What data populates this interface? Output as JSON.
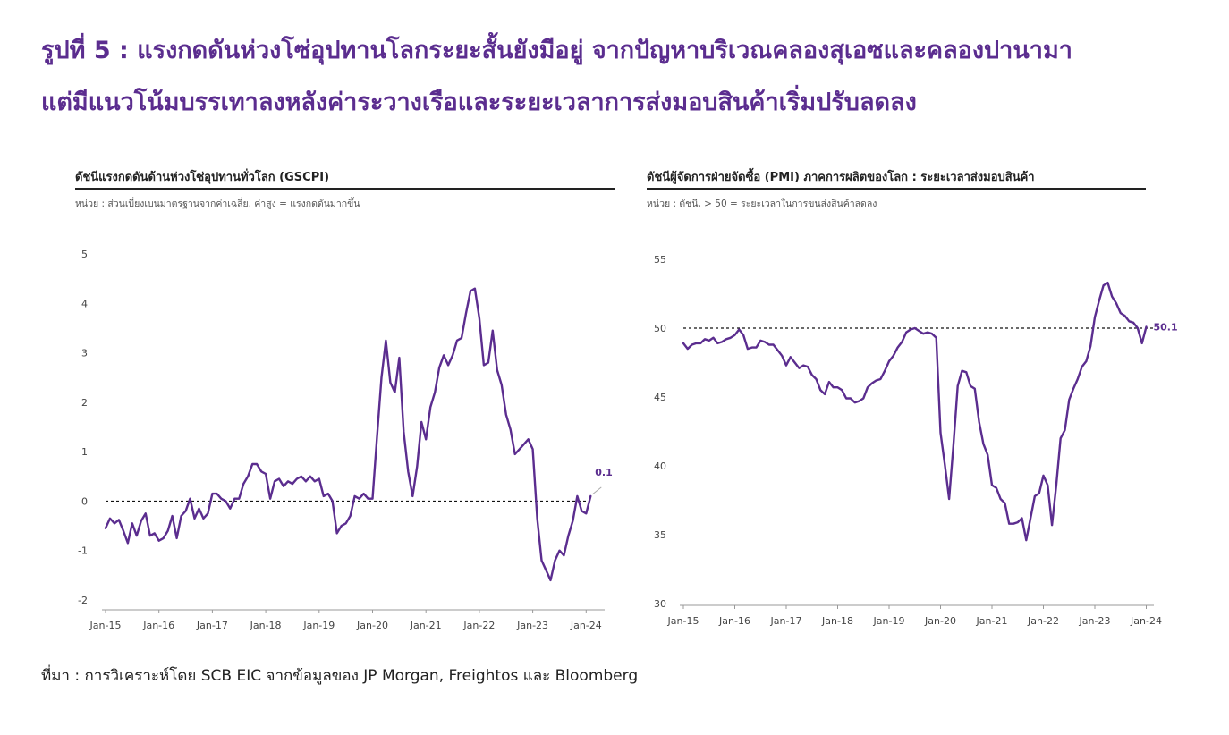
{
  "header": {
    "line1": "รูปที่ 5 : แรงกดดันห่วงโซ่อุปทานโลกระยะสั้นยังมีอยู่ จากปัญหาบริเวณคลองสุเอซและคลองปานามา",
    "line2": "แต่มีแนวโน้มบรรเทาลงหลังค่าระวางเรือและระยะเวลาการส่งมอบสินค้าเริ่มปรับลดลง"
  },
  "source": "ที่มา : การวิเคราะห์โดย SCB EIC จากข้อมูลของ JP Morgan, Freightos และ Bloomberg",
  "colors": {
    "title": "#5b2d8f",
    "series": "#5b2d8f",
    "text": "#222222",
    "axis": "#666666"
  },
  "chart_data": [
    {
      "type": "line",
      "title": "ดัชนีแรงกดดันด้านห่วงโซ่อุปทานทั่วโลก (GSCPI)",
      "unit_note": "หน่วย : ส่วนเบี่ยงเบนมาตรฐานจากค่าเฉลี่ย, ค่าสูง = แรงกดดันมากขึ้น",
      "xlabel": "",
      "ylabel": "",
      "x_ticks": [
        "Jan-15",
        "Jan-16",
        "Jan-17",
        "Jan-18",
        "Jan-19",
        "Jan-20",
        "Jan-21",
        "Jan-22",
        "Jan-23",
        "Jan-24"
      ],
      "y_ticks": [
        5,
        4,
        3,
        2,
        1,
        0,
        -1,
        -2
      ],
      "ylim": [
        -2,
        5
      ],
      "reference_line": 0,
      "end_label": "0.1",
      "grid": false,
      "series": [
        {
          "name": "GSCPI",
          "values": [
            -0.55,
            -0.35,
            -0.45,
            -0.38,
            -0.6,
            -0.85,
            -0.45,
            -0.7,
            -0.4,
            -0.25,
            -0.7,
            -0.65,
            -0.8,
            -0.75,
            -0.6,
            -0.3,
            -0.75,
            -0.3,
            -0.2,
            0.05,
            -0.35,
            -0.15,
            -0.35,
            -0.25,
            0.15,
            0.15,
            0.05,
            0.0,
            -0.15,
            0.05,
            0.05,
            0.35,
            0.5,
            0.75,
            0.75,
            0.6,
            0.55,
            0.05,
            0.4,
            0.45,
            0.3,
            0.4,
            0.35,
            0.45,
            0.5,
            0.4,
            0.5,
            0.4,
            0.45,
            0.1,
            0.15,
            0.0,
            -0.65,
            -0.5,
            -0.45,
            -0.3,
            0.1,
            0.05,
            0.15,
            0.05,
            0.05,
            1.3,
            2.5,
            3.25,
            2.4,
            2.2,
            2.9,
            1.4,
            0.6,
            0.1,
            0.7,
            1.6,
            1.25,
            1.9,
            2.2,
            2.7,
            2.95,
            2.75,
            2.95,
            3.25,
            3.3,
            3.8,
            4.25,
            4.3,
            3.7,
            2.75,
            2.8,
            3.45,
            2.65,
            2.35,
            1.75,
            1.45,
            0.95,
            1.05,
            1.15,
            1.25,
            1.05,
            -0.35,
            -1.2,
            -1.4,
            -1.6,
            -1.2,
            -1.0,
            -1.1,
            -0.7,
            -0.4,
            0.1,
            -0.2,
            -0.25,
            0.1
          ]
        }
      ]
    },
    {
      "type": "line",
      "title": "ดัชนีผู้จัดการฝ่ายจัดซื้อ (PMI) ภาคการผลิตของโลก : ระยะเวลาส่งมอบสินค้า",
      "unit_note": "หน่วย : ดัชนี, > 50 = ระยะเวลาในการขนส่งสินค้าลดลง",
      "xlabel": "",
      "ylabel": "",
      "x_ticks": [
        "Jan-15",
        "Jan-16",
        "Jan-17",
        "Jan-18",
        "Jan-19",
        "Jan-20",
        "Jan-21",
        "Jan-22",
        "Jan-23",
        "Jan-24"
      ],
      "y_ticks": [
        55,
        50,
        45,
        40,
        35,
        30
      ],
      "ylim": [
        30,
        55
      ],
      "reference_line": 50,
      "end_label": "50.1",
      "grid": false,
      "series": [
        {
          "name": "PMI Suppliers' Delivery Times",
          "values": [
            48.9,
            48.5,
            48.8,
            48.9,
            48.9,
            49.2,
            49.1,
            49.3,
            48.9,
            49.0,
            49.2,
            49.3,
            49.5,
            49.9,
            49.5,
            48.5,
            48.6,
            48.6,
            49.1,
            49.0,
            48.8,
            48.8,
            48.4,
            48.0,
            47.3,
            47.9,
            47.5,
            47.1,
            47.3,
            47.2,
            46.6,
            46.3,
            45.5,
            45.2,
            46.1,
            45.7,
            45.7,
            45.5,
            44.9,
            44.9,
            44.6,
            44.7,
            44.9,
            45.7,
            46.0,
            46.2,
            46.3,
            46.9,
            47.6,
            48.0,
            48.6,
            49.0,
            49.7,
            49.9,
            50.0,
            49.8,
            49.6,
            49.7,
            49.6,
            49.3,
            42.4,
            40.1,
            37.6,
            41.5,
            45.8,
            46.9,
            46.8,
            45.8,
            45.6,
            43.2,
            41.6,
            40.8,
            38.6,
            38.4,
            37.6,
            37.3,
            35.8,
            35.8,
            35.9,
            36.2,
            34.6,
            36.2,
            37.8,
            38.0,
            39.3,
            38.6,
            35.7,
            38.6,
            42.0,
            42.6,
            44.8,
            45.6,
            46.3,
            47.2,
            47.6,
            48.7,
            50.8,
            52.0,
            53.1,
            53.3,
            52.3,
            51.8,
            51.1,
            50.9,
            50.5,
            50.4,
            50.0,
            48.9,
            50.1
          ]
        }
      ]
    }
  ]
}
